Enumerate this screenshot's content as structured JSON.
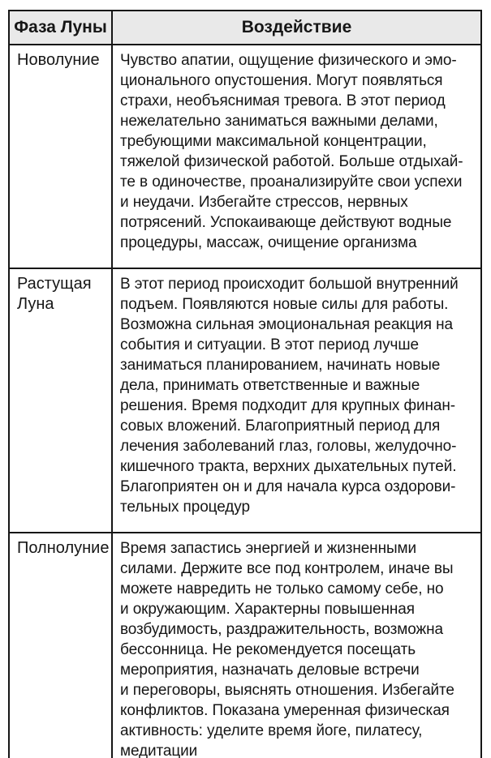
{
  "table": {
    "title_semantic": "moon-phase-influence-table",
    "colors": {
      "header_bg": "#e9e9e9",
      "border": "#161616",
      "text": "#161616",
      "page_bg": "#ffffff"
    },
    "headers": {
      "phase": "Фаза Луны",
      "effect": "Воздействие"
    },
    "rows": [
      {
        "phase": "Новолуние",
        "effect": "Чувство апатии, ощущение физического и эмо-\nционального опустошения. Могут появляться\nстрахи, необъяснимая тревога. В этот период\nнежелательно заниматься важными делами,\nтребующими максимальной концентрации,\nтяжелой физической работой. Больше отдыхай-\nте в одиночестве, проанализируйте свои успехи\nи неудачи. Избегайте стрессов, нервных\nпотрясений. Успокаивающе действуют водные\nпроцедуры, массаж, очищение организма"
      },
      {
        "phase": "Растущая\nЛуна",
        "effect": "В этот период происходит большой внутренний\nподъем. Появляются новые силы для работы.\nВозможна сильная эмоциональная реакция на\nсобытия и ситуации. В этот период лучше\nзаниматься планированием, начинать новые\nдела, принимать ответственные и важные\nрешения. Время подходит для крупных финан-\nсовых вложений. Благоприятный период для\nлечения заболеваний глаз, головы, желудочно-\nкишечного тракта, верхних дыхательных путей.\nБлагоприятен он и для начала курса оздорови-\nтельных процедур"
      },
      {
        "phase": "Полнолуние",
        "effect": "Время запастись энергией и жизненными\nсилами. Держите все под контролем, иначе вы\nможете навредить не только самому себе, но\nи окружающим. Характерны повышенная\nвозбудимость, раздражительность, возможна\nбессонница. Не рекомендуется посещать\nмероприятия, назначать деловые встречи\nи переговоры, выяснять отношения. Избегайте\nконфликтов. Показана умеренная физическая\nактивность: уделите время йоге, пилатесу,\nмедитации"
      }
    ]
  }
}
